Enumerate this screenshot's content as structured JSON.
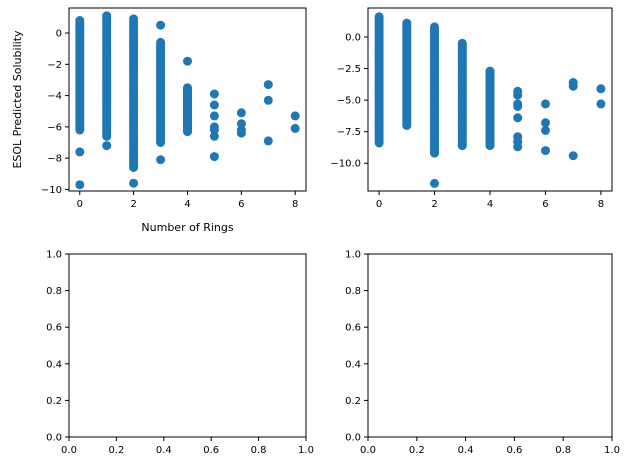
{
  "chart_data": [
    {
      "type": "scatter",
      "xlabel": "Number of Rings",
      "ylabel": "ESOL Predicted Solubility",
      "xlim": [
        -0.4,
        8.4
      ],
      "ylim": [
        -10.1,
        1.6
      ],
      "xticks": [
        0,
        2,
        4,
        6,
        8
      ],
      "yticks": [
        -10,
        -8,
        -6,
        -4,
        -2,
        0
      ],
      "ytick_labels": [
        "−10",
        "−8",
        "−6",
        "−4",
        "−2",
        "0"
      ],
      "color": "#1f77b4",
      "grid": false,
      "columns": [
        {
          "x": 0,
          "ymin": -6.2,
          "ymax": 0.8,
          "outliers": [
            -7.6,
            -9.7
          ]
        },
        {
          "x": 1,
          "ymin": -6.6,
          "ymax": 1.1,
          "outliers": [
            -7.2
          ]
        },
        {
          "x": 2,
          "ymin": -8.6,
          "ymax": 0.9,
          "outliers": [
            -9.6
          ]
        },
        {
          "x": 3,
          "ymin": -7.0,
          "ymax": -0.6,
          "outliers": [
            0.5,
            -8.1
          ]
        },
        {
          "x": 4,
          "ymin": -6.3,
          "ymax": -3.5,
          "outliers": [
            -1.8
          ]
        },
        {
          "x": 5,
          "points": [
            -3.9,
            -4.6,
            -5.3,
            -6.0,
            -6.2,
            -6.6,
            -7.9
          ]
        },
        {
          "x": 6,
          "points": [
            -5.1,
            -5.8,
            -6.2,
            -6.4
          ]
        },
        {
          "x": 7,
          "points": [
            -3.3,
            -4.3,
            -6.9
          ]
        },
        {
          "x": 8,
          "points": [
            -5.3,
            -6.1
          ]
        }
      ]
    },
    {
      "type": "scatter",
      "xlabel": "",
      "ylabel": "",
      "xlim": [
        -0.4,
        8.4
      ],
      "ylim": [
        -12.2,
        2.3
      ],
      "xticks": [
        0,
        2,
        4,
        6,
        8
      ],
      "yticks": [
        -10.0,
        -7.5,
        -5.0,
        -2.5,
        0.0
      ],
      "ytick_labels": [
        "−10.0",
        "−7.5",
        "−5.0",
        "−2.5",
        "0.0"
      ],
      "color": "#1f77b4",
      "grid": false,
      "columns": [
        {
          "x": 0,
          "ymin": -8.4,
          "ymax": 1.6,
          "outliers": []
        },
        {
          "x": 1,
          "ymin": -7.0,
          "ymax": 1.1,
          "outliers": []
        },
        {
          "x": 2,
          "ymin": -9.2,
          "ymax": 0.8,
          "outliers": [
            -11.6
          ]
        },
        {
          "x": 3,
          "ymin": -8.6,
          "ymax": -0.5,
          "outliers": []
        },
        {
          "x": 4,
          "ymin": -8.6,
          "ymax": -2.7,
          "outliers": []
        },
        {
          "x": 5,
          "points": [
            -4.3,
            -4.6,
            -5.3,
            -5.5,
            -6.4,
            -7.9,
            -8.3,
            -8.7
          ]
        },
        {
          "x": 6,
          "points": [
            -5.3,
            -6.8,
            -7.4,
            -9.0
          ]
        },
        {
          "x": 7,
          "points": [
            -3.6,
            -3.9,
            -9.4
          ]
        },
        {
          "x": 8,
          "points": [
            -4.1,
            -5.3
          ]
        }
      ]
    },
    {
      "type": "scatter",
      "xlabel": "",
      "ylabel": "",
      "xlim": [
        0.0,
        1.0
      ],
      "ylim": [
        0.0,
        1.0
      ],
      "xticks": [
        0.0,
        0.2,
        0.4,
        0.6,
        0.8,
        1.0
      ],
      "yticks": [
        0.0,
        0.2,
        0.4,
        0.6,
        0.8,
        1.0
      ],
      "xtick_labels": [
        "0.0",
        "0.2",
        "0.4",
        "0.6",
        "0.8",
        "1.0"
      ],
      "ytick_labels": [
        "0.0",
        "0.2",
        "0.4",
        "0.6",
        "0.8",
        "1.0"
      ],
      "grid": false,
      "columns": []
    },
    {
      "type": "scatter",
      "xlabel": "",
      "ylabel": "",
      "xlim": [
        0.0,
        1.0
      ],
      "ylim": [
        0.0,
        1.0
      ],
      "xticks": [
        0.0,
        0.2,
        0.4,
        0.6,
        0.8,
        1.0
      ],
      "yticks": [
        0.0,
        0.2,
        0.4,
        0.6,
        0.8,
        1.0
      ],
      "xtick_labels": [
        "0.0",
        "0.2",
        "0.4",
        "0.6",
        "0.8",
        "1.0"
      ],
      "ytick_labels": [
        "0.0",
        "0.2",
        "0.4",
        "0.6",
        "0.8",
        "1.0"
      ],
      "grid": false,
      "columns": []
    }
  ]
}
